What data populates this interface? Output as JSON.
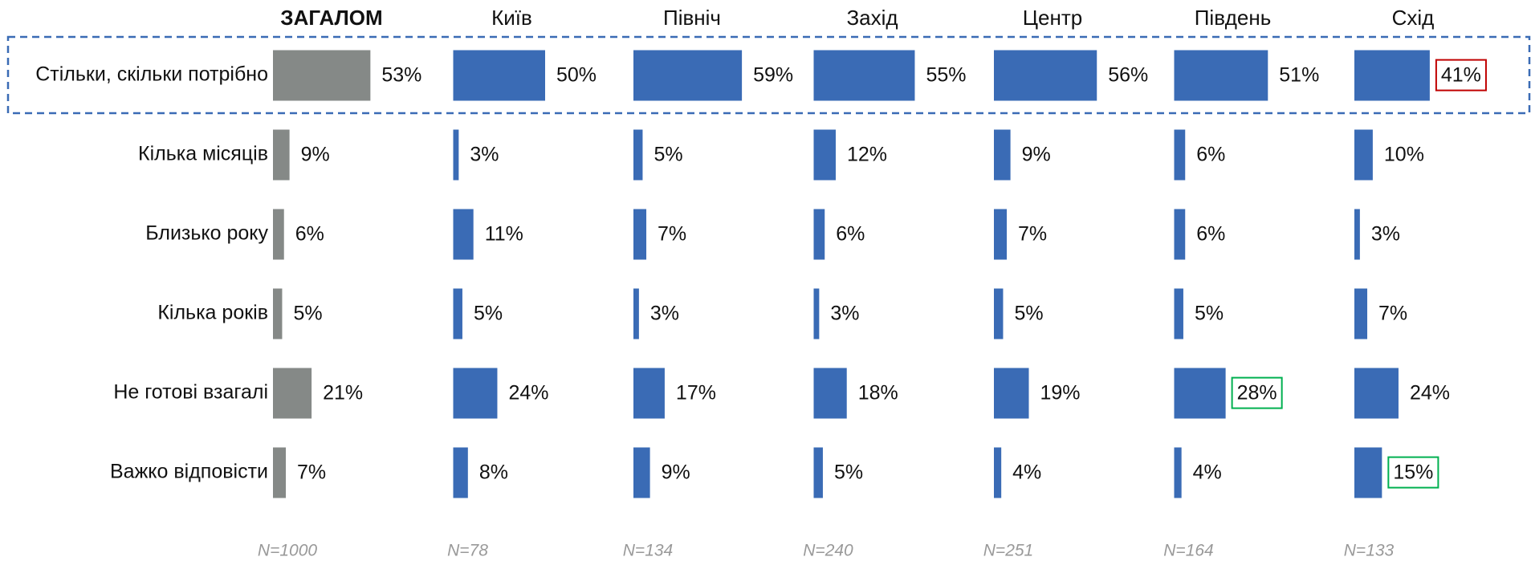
{
  "chart_data": {
    "type": "bar",
    "categories": [
      "Стільки, скільки потрібно",
      "Кілька місяців",
      "Близько року",
      "Кілька років",
      "Не готові взагалі",
      "Важко відповісти"
    ],
    "series": [
      {
        "name": "ЗАГАЛОМ",
        "color": "#858987",
        "values": [
          53,
          9,
          6,
          5,
          21,
          7
        ],
        "value_labels": [
          "53%",
          "9%",
          "6%",
          "5%",
          "21%",
          "7%"
        ],
        "note": "N=1000"
      },
      {
        "name": "Київ",
        "color": "#3a6bb5",
        "values": [
          50,
          3,
          11,
          5,
          24,
          8
        ],
        "value_labels": [
          "50%",
          "3%",
          "11%",
          "5%",
          "24%",
          "8%"
        ],
        "note": "N=78"
      },
      {
        "name": "Північ",
        "color": "#3a6bb5",
        "values": [
          59,
          5,
          7,
          3,
          17,
          9
        ],
        "value_labels": [
          "59%",
          "5%",
          "7%",
          "3%",
          "17%",
          "9%"
        ],
        "note": "N=134"
      },
      {
        "name": "Захід",
        "color": "#3a6bb5",
        "values": [
          55,
          12,
          6,
          3,
          18,
          5
        ],
        "value_labels": [
          "55%",
          "12%",
          "6%",
          "3%",
          "18%",
          "5%"
        ],
        "note": "N=240"
      },
      {
        "name": "Центр",
        "color": "#3a6bb5",
        "values": [
          56,
          9,
          7,
          5,
          19,
          4
        ],
        "value_labels": [
          "56%",
          "9%",
          "7%",
          "5%",
          "19%",
          "4%"
        ],
        "note": "N=251"
      },
      {
        "name": "Південь",
        "color": "#3a6bb5",
        "values": [
          51,
          6,
          6,
          5,
          28,
          4
        ],
        "value_labels": [
          "51%",
          "6%",
          "6%",
          "5%",
          "28%",
          "4%"
        ],
        "note": "N=164"
      },
      {
        "name": "Схід",
        "color": "#3a6bb5",
        "values": [
          41,
          10,
          3,
          7,
          24,
          15
        ],
        "value_labels": [
          "41%",
          "10%",
          "3%",
          "7%",
          "24%",
          "15%"
        ],
        "note": "N=133"
      }
    ],
    "highlights": [
      {
        "series": 6,
        "index": 0,
        "color": "#c00000"
      },
      {
        "series": 5,
        "index": 4,
        "color": "#00b050"
      },
      {
        "series": 6,
        "index": 5,
        "color": "#00b050"
      }
    ]
  }
}
